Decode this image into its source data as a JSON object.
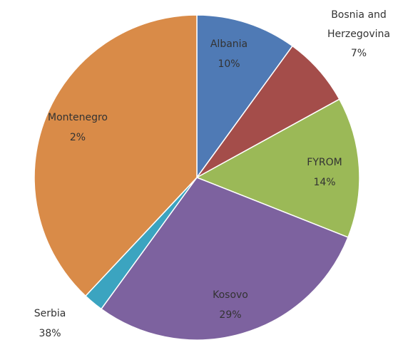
{
  "chart_data": {
    "type": "pie",
    "categories": [
      "Albania",
      "Bosnia and Herzegovina",
      "FYROM",
      "Kosovo",
      "Montenegro",
      "Serbia"
    ],
    "values": [
      10,
      7,
      14,
      29,
      2,
      38
    ],
    "value_labels": [
      "10%",
      "7%",
      "14%",
      "29%",
      "2%",
      "38%"
    ],
    "colors": [
      "#4f7ab5",
      "#a44d4a",
      "#9bb957",
      "#7d629f",
      "#3ba4c0",
      "#d98b48"
    ]
  }
}
